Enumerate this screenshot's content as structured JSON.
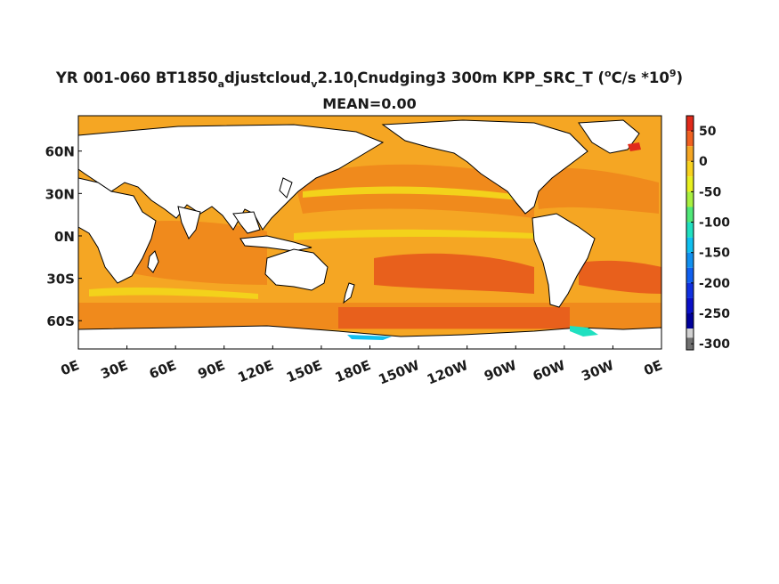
{
  "title": {
    "pre": "YR 001-060 BT1850",
    "sub1": "a",
    "mid1": "djustcloud",
    "sub2": "v",
    "mid2": "2.10",
    "sub3": "I",
    "mid3": "Cnudging3 300m KPP_SRC_T (",
    "sup1": "o",
    "mid4": "C/s *10",
    "sup2": "9",
    "end": ")"
  },
  "subtitle": "MEAN=0.00",
  "map": {
    "lon_labels": [
      "0E",
      "30E",
      "60E",
      "90E",
      "120E",
      "150E",
      "180E",
      "150W",
      "120W",
      "90W",
      "60W",
      "30W",
      "0E"
    ],
    "lat_labels": [
      "60N",
      "30N",
      "0N",
      "30S",
      "60S"
    ],
    "lat_values": [
      60,
      30,
      0,
      -30,
      -60
    ],
    "lat_range": [
      -80,
      85
    ],
    "colors": {
      "ocean_main": "#f5a623",
      "ocean_warm": "#f08a1c",
      "ocean_hot": "#e8601c",
      "ocean_yellow": "#f3d21b",
      "land": "#ffffff",
      "coast": "#000000"
    }
  },
  "colorbar": {
    "labels": [
      "50",
      "0",
      "-50",
      "-100",
      "-150",
      "-200",
      "-250",
      "-300"
    ],
    "values": [
      50,
      0,
      -50,
      -100,
      -150,
      -200,
      -250,
      -300
    ],
    "range": [
      -310,
      75
    ],
    "stops": [
      {
        "from": 75,
        "to": 50,
        "color": "#e02a1a"
      },
      {
        "from": 50,
        "to": 25,
        "color": "#f06020"
      },
      {
        "from": 25,
        "to": 0,
        "color": "#f5a623"
      },
      {
        "from": 0,
        "to": -25,
        "color": "#f8d21e"
      },
      {
        "from": -25,
        "to": -50,
        "color": "#e8f020"
      },
      {
        "from": -50,
        "to": -75,
        "color": "#a8f040"
      },
      {
        "from": -75,
        "to": -100,
        "color": "#50e878"
      },
      {
        "from": -100,
        "to": -125,
        "color": "#20e0c0"
      },
      {
        "from": -125,
        "to": -150,
        "color": "#10c0f0"
      },
      {
        "from": -150,
        "to": -175,
        "color": "#1090f0"
      },
      {
        "from": -175,
        "to": -200,
        "color": "#1060f0"
      },
      {
        "from": -200,
        "to": -225,
        "color": "#1030e0"
      },
      {
        "from": -225,
        "to": -250,
        "color": "#0a10c8"
      },
      {
        "from": -250,
        "to": -275,
        "color": "#00009a"
      },
      {
        "from": -275,
        "to": -290,
        "color": "#d0d0d0"
      },
      {
        "from": -290,
        "to": -310,
        "color": "#707070"
      }
    ]
  }
}
